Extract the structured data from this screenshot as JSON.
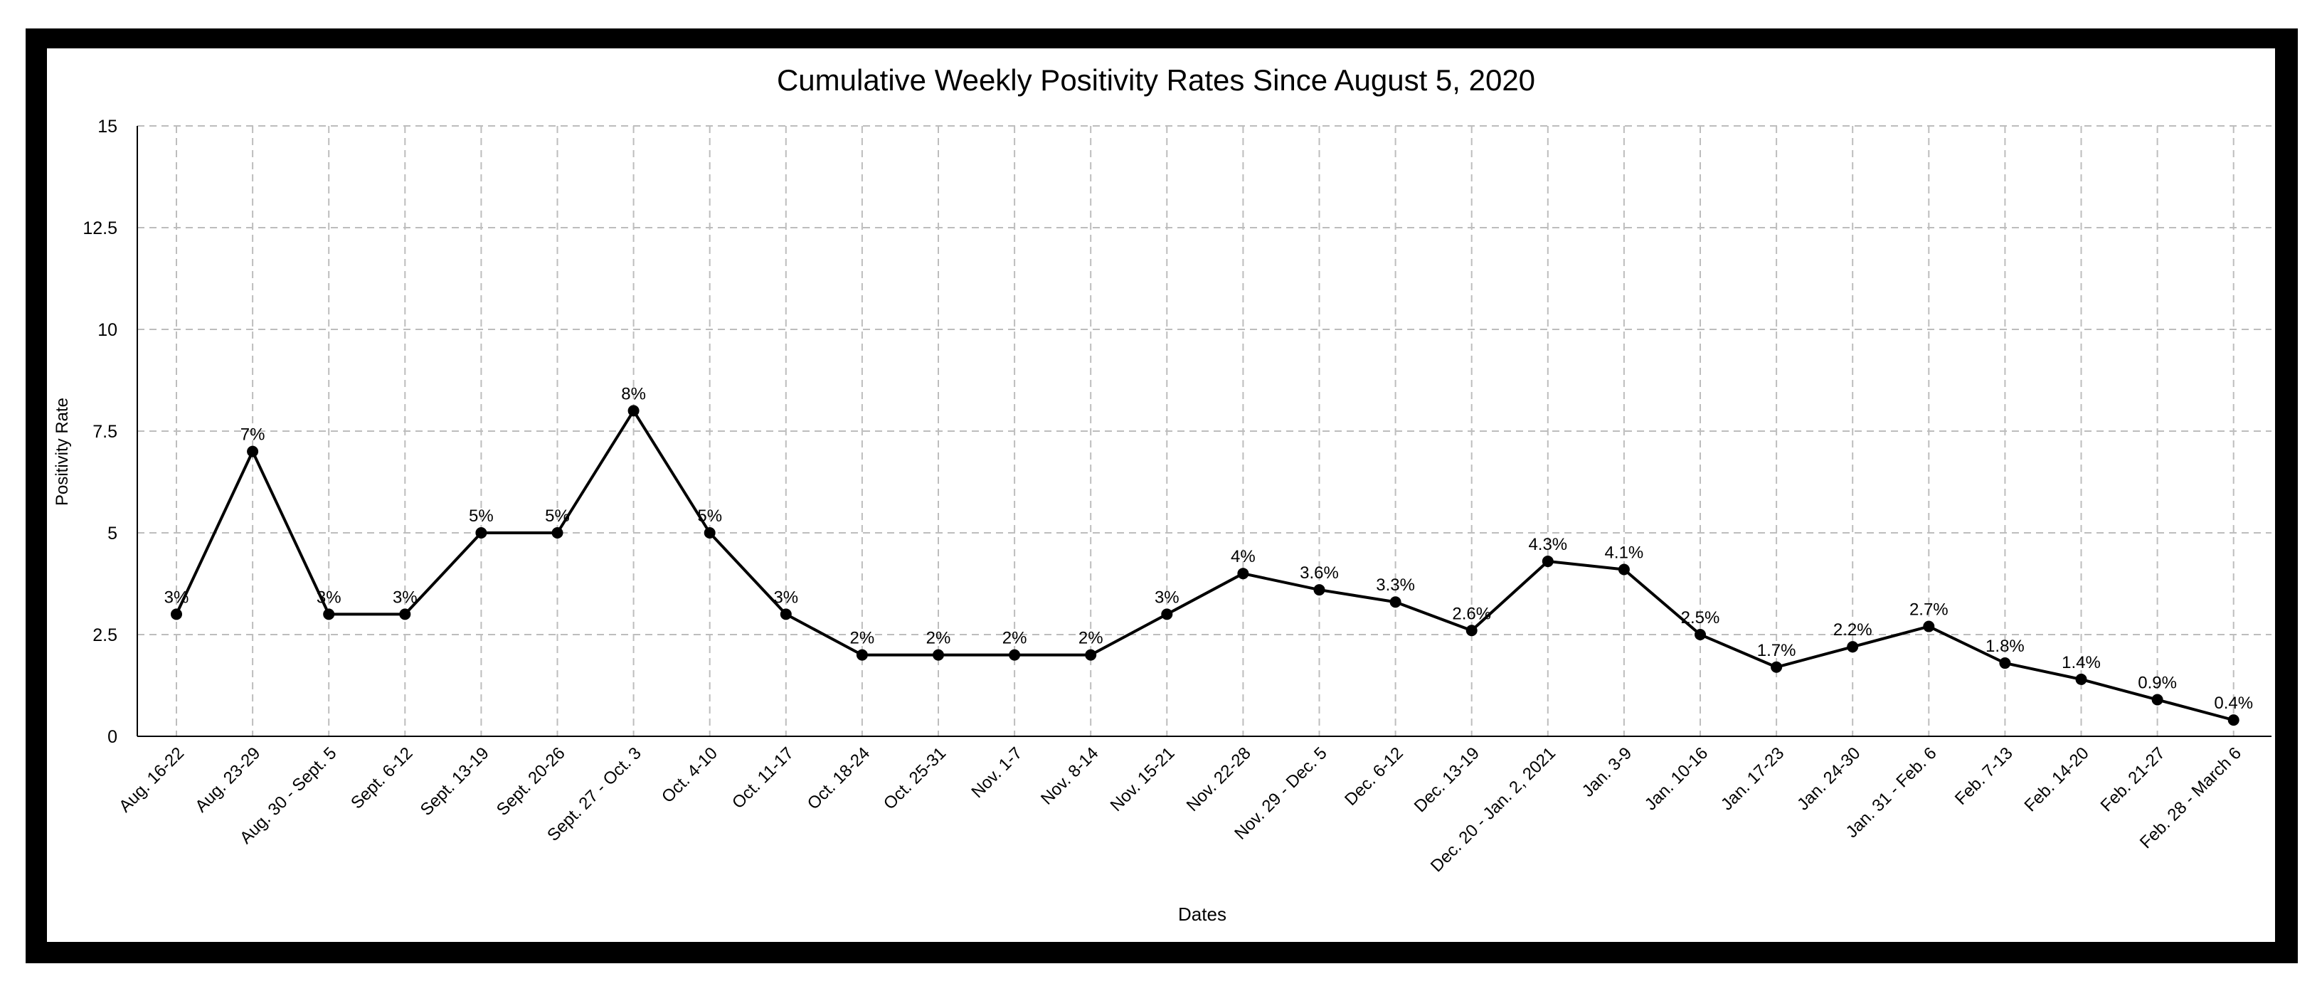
{
  "chart_data": {
    "type": "line",
    "title": "Cumulative Weekly Positivity Rates Since August 5, 2020",
    "xlabel": "Dates",
    "ylabel": "Positivity Rate",
    "ylim": [
      0,
      15
    ],
    "yticks": [
      "0",
      "2.5",
      "5",
      "7.5",
      "10",
      "12.5",
      "15"
    ],
    "grid": true,
    "categories": [
      "Aug. 16-22",
      "Aug. 23-29",
      "Aug. 30 - Sept. 5",
      "Sept. 6-12",
      "Sept. 13-19",
      "Sept. 20-26",
      "Sept. 27 - Oct. 3",
      "Oct. 4-10",
      "Oct. 11-17",
      "Oct. 18-24",
      "Oct. 25-31",
      "Nov. 1-7",
      "Nov. 8-14",
      "Nov. 15-21",
      "Nov. 22-28",
      "Nov. 29 - Dec. 5",
      "Dec. 6-12",
      "Dec. 13-19",
      "Dec. 20 - Jan. 2, 2021",
      "Jan. 3-9",
      "Jan. 10-16",
      "Jan. 17-23",
      "Jan. 24-30",
      "Jan. 31 - Feb. 6",
      "Feb. 7-13",
      "Feb. 14-20",
      "Feb. 21-27",
      "Feb. 28 - March 6"
    ],
    "values": [
      3,
      7,
      3,
      3,
      5,
      5,
      8,
      5,
      3,
      2,
      2,
      2,
      2,
      3,
      4,
      3.6,
      3.3,
      2.6,
      4.3,
      4.1,
      2.5,
      1.7,
      2.2,
      2.7,
      1.8,
      1.4,
      0.9,
      0.4
    ],
    "data_labels": [
      "3%",
      "7%",
      "3%",
      "3%",
      "5%",
      "5%",
      "8%",
      "5%",
      "3%",
      "2%",
      "2%",
      "2%",
      "2%",
      "3%",
      "4%",
      "3.6%",
      "3.3%",
      "2.6%",
      "4.3%",
      "4.1%",
      "2.5%",
      "1.7%",
      "2.2%",
      "2.7%",
      "1.8%",
      "1.4%",
      "0.9%",
      "0.4%"
    ],
    "line_color": "#000000",
    "grid_color": "#bdbdbd"
  }
}
